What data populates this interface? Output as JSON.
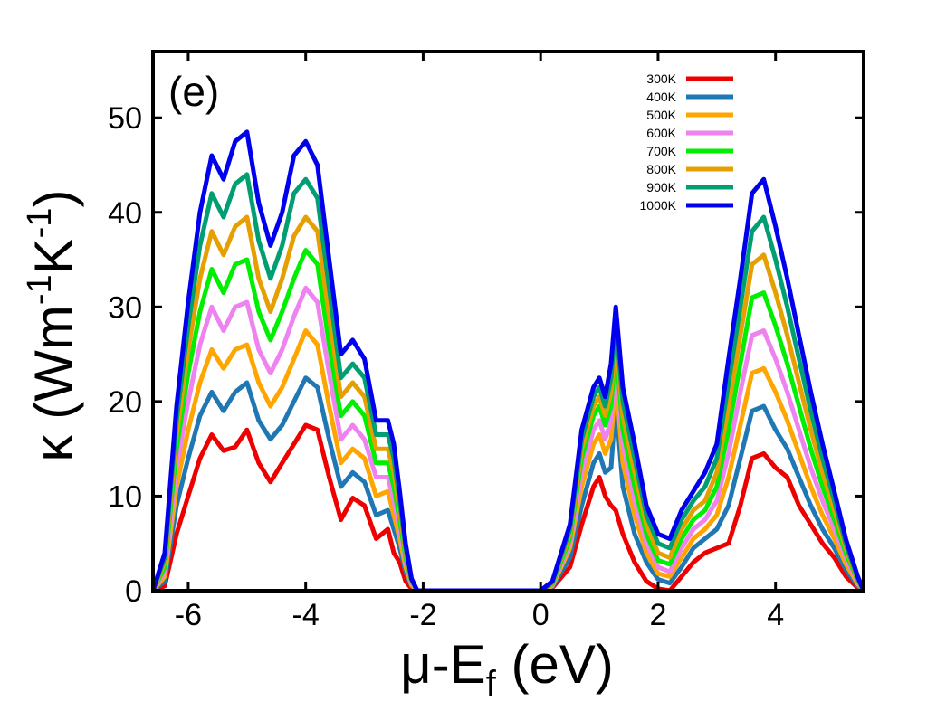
{
  "chart_data": {
    "type": "line",
    "panel_label": "(e)",
    "xlabel": "μ-E_f (eV)",
    "ylabel": "κ (Wm⁻¹K⁻¹)",
    "xlabel_parts": {
      "main": "μ-E",
      "sub": "f",
      "tail": " (eV)"
    },
    "ylabel_parts": {
      "greek": "κ (Wm",
      "sup1": "-1",
      "mid": "K",
      "sup2": "-1",
      "close": ")"
    },
    "xlim": [
      -6.6,
      5.5
    ],
    "ylim": [
      0,
      57
    ],
    "x_ticks": [
      -6,
      -4,
      -2,
      0,
      2,
      4
    ],
    "x_tick_labels": [
      "-6",
      "-4",
      "-2",
      "0",
      "2",
      "4"
    ],
    "y_ticks": [
      0,
      10,
      20,
      30,
      40,
      50
    ],
    "y_tick_labels": [
      "0",
      "10",
      "20",
      "30",
      "40",
      "50"
    ],
    "legend_position": "top-right",
    "x": [
      -6.6,
      -6.4,
      -6.2,
      -6.0,
      -5.8,
      -5.6,
      -5.4,
      -5.2,
      -5.0,
      -4.8,
      -4.6,
      -4.4,
      -4.2,
      -4.0,
      -3.8,
      -3.6,
      -3.4,
      -3.2,
      -3.0,
      -2.8,
      -2.6,
      -2.5,
      -2.4,
      -2.3,
      -2.2,
      -2.1,
      -2.0,
      -1.8,
      -1.5,
      0.0,
      0.2,
      0.5,
      0.7,
      0.9,
      1.0,
      1.1,
      1.2,
      1.28,
      1.4,
      1.6,
      1.8,
      2.0,
      2.2,
      2.4,
      2.6,
      2.8,
      3.0,
      3.2,
      3.4,
      3.6,
      3.8,
      4.0,
      4.2,
      4.4,
      4.6,
      4.8,
      5.0,
      5.2,
      5.4,
      5.5
    ],
    "series": [
      {
        "name": "300K",
        "color": "#ee0000",
        "values": [
          0,
          0.5,
          6,
          10,
          14,
          16.5,
          14.8,
          15.2,
          17,
          13.5,
          11.5,
          13.5,
          15.5,
          17.5,
          17,
          12,
          7.5,
          9.8,
          9,
          5.5,
          6.5,
          4,
          3,
          1,
          0.2,
          0,
          0,
          0,
          0,
          0,
          0.3,
          2.5,
          7,
          11,
          12,
          10,
          9,
          8.5,
          6,
          3,
          1,
          0.2,
          0,
          1.5,
          3,
          4,
          4.5,
          5,
          9,
          14,
          14.5,
          13,
          12,
          9,
          7,
          5,
          3.5,
          1.5,
          0.3,
          0
        ]
      },
      {
        "name": "400K",
        "color": "#1f77b4",
        "values": [
          0,
          1,
          9,
          14,
          18.5,
          21,
          19,
          21,
          22,
          18,
          16,
          17.5,
          20,
          22.5,
          21.5,
          16,
          11,
          12.5,
          11.5,
          8,
          8.5,
          6.5,
          4.5,
          2,
          0.5,
          0,
          0,
          0,
          0,
          0,
          0.4,
          3.5,
          9,
          13.5,
          14.5,
          12.5,
          13,
          20,
          11,
          6,
          3,
          1.2,
          0.8,
          2.5,
          4.5,
          5.5,
          6.5,
          9,
          14,
          19,
          19.5,
          17,
          15,
          12,
          9,
          6.5,
          4.5,
          2.2,
          0.5,
          0
        ]
      },
      {
        "name": "500K",
        "color": "#ffa500",
        "values": [
          0,
          1.5,
          11,
          17,
          22,
          25.5,
          23.5,
          25.5,
          26,
          22,
          19.5,
          21.5,
          24.5,
          27.5,
          26,
          19.5,
          13.5,
          15,
          14,
          10,
          10.5,
          8,
          5.5,
          2.5,
          0.6,
          0,
          0,
          0,
          0,
          0,
          0.5,
          4.5,
          11,
          15.5,
          16.5,
          14.5,
          16,
          22.5,
          13.5,
          8,
          4,
          1.8,
          1.5,
          3.5,
          5.5,
          6.5,
          8,
          12,
          17.5,
          23,
          23.5,
          21,
          18,
          14.5,
          11,
          8,
          5.5,
          2.8,
          0.7,
          0
        ]
      },
      {
        "name": "600K",
        "color": "#ee82ee",
        "values": [
          0,
          2,
          13,
          20,
          26,
          30,
          27.5,
          30,
          30.5,
          25.5,
          23,
          25.5,
          29,
          32,
          30.5,
          23,
          16,
          17.5,
          16,
          12,
          12,
          9.5,
          6.5,
          3,
          0.8,
          0,
          0,
          0,
          0,
          0,
          0.6,
          5,
          12.5,
          17,
          18,
          16,
          18,
          24.5,
          15.5,
          9.5,
          5,
          2.5,
          2,
          4.5,
          6.5,
          7.5,
          9.5,
          14.5,
          21,
          27,
          27.5,
          24.5,
          21,
          17,
          13,
          9.5,
          6.5,
          3.4,
          0.9,
          0
        ]
      },
      {
        "name": "700K",
        "color": "#00ee00",
        "values": [
          0,
          2.5,
          15,
          23,
          29.5,
          34,
          31.5,
          34.5,
          35,
          29.5,
          26.5,
          29.5,
          33,
          36,
          34.5,
          26,
          18.5,
          20,
          18.5,
          13.5,
          13.5,
          11,
          7.5,
          3.5,
          1,
          0,
          0,
          0,
          0,
          0,
          0.7,
          5.5,
          14,
          18.5,
          19.5,
          17.5,
          19.5,
          26,
          17,
          11,
          6,
          3.2,
          2.8,
          5.5,
          7.5,
          8.5,
          11,
          17,
          24,
          31,
          31.5,
          28,
          24,
          19.5,
          15,
          11,
          7.5,
          3.9,
          1.1,
          0
        ]
      },
      {
        "name": "800K",
        "color": "#e69f00",
        "values": [
          0,
          3,
          16.5,
          25.5,
          33,
          38,
          35.5,
          38.5,
          39.5,
          33,
          29.5,
          33,
          37.5,
          39.5,
          38,
          29,
          20.5,
          22,
          20.5,
          15,
          15,
          12.5,
          8.5,
          4,
          1.1,
          0,
          0,
          0,
          0,
          0,
          0.8,
          6,
          15,
          19.5,
          20.5,
          18.5,
          21,
          27,
          18.5,
          12.5,
          7,
          4,
          3.5,
          6.5,
          8.5,
          9.5,
          12.5,
          19.5,
          27,
          34.5,
          35.5,
          31.5,
          27,
          22,
          17,
          12.5,
          8.5,
          4.4,
          1.2,
          0
        ]
      },
      {
        "name": "900K",
        "color": "#009e73",
        "values": [
          0,
          3.5,
          18,
          28,
          36.5,
          42,
          39.5,
          43,
          44,
          37,
          33,
          36.5,
          42,
          43.5,
          41.5,
          32,
          22.5,
          24,
          22.5,
          16.5,
          16.5,
          14,
          9.5,
          4.5,
          1.2,
          0,
          0,
          0,
          0,
          0,
          0.9,
          6.5,
          16,
          20.5,
          21.5,
          19.5,
          22.5,
          28.5,
          20,
          14,
          8,
          5,
          4.5,
          7.5,
          9.5,
          11,
          14,
          22,
          30,
          38,
          39.5,
          35,
          30,
          24.5,
          19,
          14,
          9.5,
          4.9,
          1.3,
          0
        ]
      },
      {
        "name": "1000K",
        "color": "#0000ee",
        "values": [
          0,
          4,
          19.5,
          30.5,
          40,
          46,
          43.5,
          47.5,
          48.5,
          41,
          36.5,
          40,
          46,
          47.5,
          45,
          35,
          25,
          26.5,
          24.5,
          18,
          18,
          15.5,
          10.5,
          5,
          1.3,
          0,
          0,
          0,
          0,
          0,
          1,
          7,
          17,
          21.5,
          22.5,
          20.5,
          24,
          30,
          21.5,
          15.5,
          9,
          6,
          5.5,
          8.5,
          10.5,
          12.5,
          15.5,
          24.5,
          33,
          42,
          43.5,
          38.5,
          33,
          27,
          21,
          15.5,
          10.5,
          5.4,
          1.5,
          0
        ]
      }
    ]
  }
}
